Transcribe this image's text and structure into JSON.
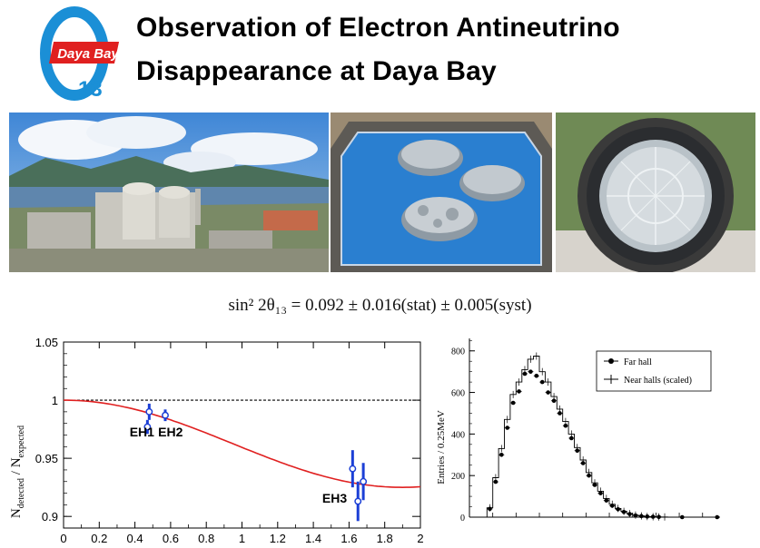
{
  "header": {
    "logo_text": "Daya Bay",
    "logo_number": "13",
    "title_line1": "Observation of Electron Antineutrino",
    "title_line2": "Disappearance at Daya Bay"
  },
  "photos": {
    "nuclear_plant": "nuclear-plant-photo",
    "water_pool": "water-pool-photo",
    "detector": "antineutrino-detector-photo"
  },
  "formula": {
    "lhs": "sin² 2θ₁₃ = ",
    "value": "0.092 ± 0.016(stat) ± 0.005(syst)"
  },
  "chart_data": [
    {
      "type": "scatter",
      "title": "",
      "xlabel": "",
      "ylabel": "N_detected / N_expected",
      "ylabel_main": "N",
      "ylabel_sub1": "detected",
      "ylabel_slash": " / N",
      "ylabel_sub2": "expected",
      "xlim": [
        0,
        2
      ],
      "ylim": [
        0.89,
        1.05
      ],
      "xticks": [
        0,
        0.2,
        0.4,
        0.6,
        0.8,
        1,
        1.2,
        1.4,
        1.6,
        1.8,
        2
      ],
      "xtick_labels": [
        "0",
        "0.2",
        "0.4",
        "0.6",
        "0.8",
        "1",
        "1.2",
        "1.4",
        "1.6",
        "1.8",
        "2"
      ],
      "yticks": [
        0.9,
        0.95,
        1,
        1.05
      ],
      "ytick_labels": [
        "0.9",
        "0.95",
        "1",
        "1.05"
      ],
      "reference_line": 1,
      "curve": {
        "color": "#e02020",
        "min_y": 0.925,
        "min_x": 1.9
      },
      "points": [
        {
          "x": 0.47,
          "y": 0.977,
          "err": 0.006
        },
        {
          "x": 0.48,
          "y": 0.99,
          "err": 0.007
        },
        {
          "x": 0.57,
          "y": 0.987,
          "err": 0.005
        },
        {
          "x": 1.62,
          "y": 0.941,
          "err": 0.016
        },
        {
          "x": 1.65,
          "y": 0.913,
          "err": 0.017
        },
        {
          "x": 1.68,
          "y": 0.93,
          "err": 0.016
        }
      ],
      "annotations": [
        {
          "text": "EH1",
          "x": 0.37,
          "y": 0.969
        },
        {
          "text": "EH2",
          "x": 0.53,
          "y": 0.969
        },
        {
          "text": "EH3",
          "x": 1.45,
          "y": 0.912
        }
      ],
      "point_color": "#1b3fd6"
    },
    {
      "type": "line",
      "title": "",
      "xlabel": "",
      "ylabel": "Entries / 0.25MeV",
      "ylim": [
        0,
        860
      ],
      "yticks": [
        0,
        200,
        400,
        600,
        800
      ],
      "ytick_labels": [
        "0",
        "200",
        "400",
        "600",
        "800"
      ],
      "legend_position": "top-right",
      "series": [
        {
          "name": "Far hall",
          "style": "points",
          "values": [
            0,
            0,
            0,
            40,
            170,
            300,
            430,
            550,
            605,
            690,
            700,
            680,
            650,
            600,
            560,
            500,
            440,
            380,
            320,
            260,
            200,
            155,
            115,
            80,
            55,
            38,
            25,
            15,
            8,
            5,
            3,
            2,
            1,
            0,
            0,
            0,
            0,
            0,
            0,
            0,
            0,
            0,
            0
          ]
        },
        {
          "name": "Near halls (scaled)",
          "style": "histogram",
          "values": [
            0,
            0,
            0,
            45,
            190,
            330,
            470,
            590,
            650,
            710,
            760,
            775,
            700,
            650,
            580,
            520,
            460,
            400,
            335,
            275,
            215,
            165,
            125,
            90,
            62,
            42,
            28,
            17,
            10,
            6,
            3,
            2,
            1,
            1,
            0,
            0,
            0,
            0,
            0,
            0,
            0,
            0,
            0
          ]
        }
      ],
      "far_hall_label": "Far hall",
      "near_halls_label": "Near halls (scaled)"
    }
  ]
}
